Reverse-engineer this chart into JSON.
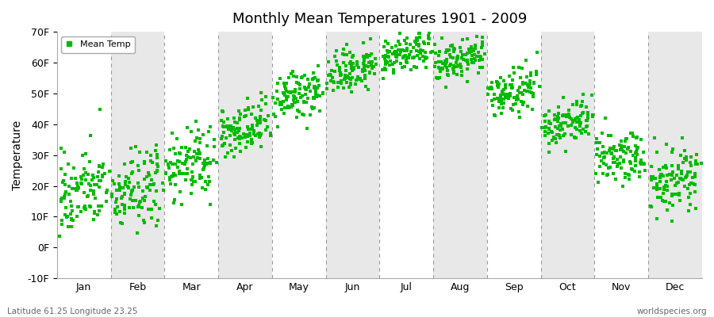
{
  "title": "Monthly Mean Temperatures 1901 - 2009",
  "ylabel": "Temperature",
  "bottom_left": "Latitude 61.25 Longitude 23.25",
  "bottom_right": "worldspecies.org",
  "legend_label": "Mean Temp",
  "dot_color": "#00bb00",
  "bg_color": "#ffffff",
  "band_color": "#e8e8e8",
  "ylim": [
    -10,
    70
  ],
  "yticks": [
    -10,
    0,
    10,
    20,
    30,
    40,
    50,
    60,
    70
  ],
  "ytick_labels": [
    "-10F",
    "0F",
    "10F",
    "20F",
    "30F",
    "40F",
    "50F",
    "60F",
    "70F"
  ],
  "months": [
    "Jan",
    "Feb",
    "Mar",
    "Apr",
    "May",
    "Jun",
    "Jul",
    "Aug",
    "Sep",
    "Oct",
    "Nov",
    "Dec"
  ],
  "month_mean_F": [
    18.0,
    18.5,
    27.0,
    38.0,
    49.0,
    57.5,
    62.5,
    60.5,
    50.5,
    40.5,
    29.5,
    22.0
  ],
  "month_std_F": [
    6.5,
    6.5,
    5.5,
    4.5,
    4.0,
    3.5,
    3.0,
    3.5,
    3.5,
    3.5,
    4.5,
    5.0
  ],
  "n_years": 109,
  "seed": 42,
  "figsize": [
    9.0,
    4.0
  ],
  "dpi": 100
}
